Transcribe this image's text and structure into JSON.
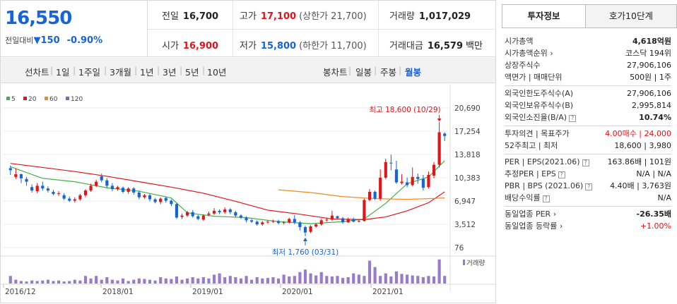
{
  "summary": {
    "price": "16,550",
    "diff_label": "전일대비",
    "diff_arrow": "▼",
    "diff_value": "150",
    "diff_rate": "-0.90%"
  },
  "quote": {
    "prev_label": "전일",
    "prev_value": "16,700",
    "high_label": "고가",
    "high_value": "17,100",
    "upper_limit": "(상한가 21,700)",
    "volume_label": "거래량",
    "volume_value": "1,017,029",
    "open_label": "시가",
    "open_value": "16,900",
    "low_label": "저가",
    "low_value": "15,800",
    "lower_limit": "(하한가 11,700)",
    "amount_label": "거래대금",
    "amount_value": "16,579",
    "amount_unit": "백만"
  },
  "nav": {
    "line_chart": "선차트",
    "periods": [
      "1일",
      "1주일",
      "3개월",
      "1년",
      "3년",
      "5년",
      "10년"
    ],
    "candle_chart": "봉차트",
    "candle_periods": [
      "일봉",
      "주봉",
      "월봉"
    ],
    "active_candle": "월봉"
  },
  "chart_data": {
    "type": "candlestick",
    "legend": [
      {
        "name": "5",
        "color": "#3cb34a"
      },
      {
        "name": "20",
        "color": "#e0151b"
      },
      {
        "name": "60",
        "color": "#f28a1f"
      },
      {
        "name": "120",
        "color": "#8e5ec8"
      }
    ],
    "y_ticks": [
      "20,690",
      "17,254",
      "13,818",
      "10,383",
      "6,947",
      "3,512",
      "76"
    ],
    "ylim": [
      76,
      20690
    ],
    "x_ticks": [
      "2016/12",
      "2018/01",
      "2019/01",
      "2020/01",
      "2021/01"
    ],
    "max_label": "최고 18,600 (10/29)",
    "min_label": "최저 1,760 (03/31)",
    "volume_label": "거래량",
    "candles": [
      [
        11800,
        11500,
        12200,
        10800
      ],
      [
        10500,
        10900,
        11800,
        10200
      ],
      [
        10900,
        10300,
        11000,
        9600
      ],
      [
        10200,
        9800,
        10500,
        9200
      ],
      [
        9000,
        8500,
        9400,
        8200
      ],
      [
        8400,
        9200,
        9600,
        8100
      ],
      [
        9200,
        8800,
        9800,
        8500
      ],
      [
        8800,
        8500,
        9100,
        8200
      ],
      [
        8300,
        8000,
        8600,
        7800
      ],
      [
        8000,
        8100,
        8400,
        7700
      ],
      [
        7800,
        7300,
        8100,
        7100
      ],
      [
        7300,
        7000,
        7600,
        6800
      ],
      [
        7000,
        7200,
        7500,
        6700
      ],
      [
        7200,
        7800,
        8000,
        7000
      ],
      [
        7800,
        8500,
        8700,
        7500
      ],
      [
        8500,
        9200,
        9500,
        8300
      ],
      [
        9200,
        9800,
        10100,
        9000
      ],
      [
        10600,
        10000,
        11000,
        9700
      ],
      [
        10000,
        9200,
        10300,
        8900
      ],
      [
        9200,
        8700,
        9600,
        8400
      ],
      [
        8700,
        9000,
        9200,
        8500
      ],
      [
        8900,
        8300,
        9100,
        8100
      ],
      [
        8300,
        8800,
        9000,
        8000
      ],
      [
        8800,
        8200,
        9000,
        7900
      ],
      [
        8200,
        7500,
        8500,
        7200
      ],
      [
        7500,
        7800,
        8000,
        7300
      ],
      [
        7800,
        7200,
        8000,
        6900
      ],
      [
        7200,
        6800,
        7400,
        6600
      ],
      [
        6800,
        7300,
        7500,
        6500
      ],
      [
        7400,
        7000,
        7600,
        6700
      ],
      [
        7000,
        6500,
        7200,
        6200
      ],
      [
        6500,
        4500,
        6700,
        4300
      ],
      [
        4600,
        4800,
        5100,
        4300
      ],
      [
        4800,
        5300,
        5500,
        4600
      ],
      [
        5300,
        4700,
        5600,
        4500
      ],
      [
        4700,
        4300,
        4900,
        4100
      ],
      [
        4200,
        4800,
        5000,
        4000
      ],
      [
        4900,
        5100,
        5400,
        4700
      ],
      [
        5100,
        5500,
        5900,
        4900
      ],
      [
        5500,
        5300,
        5700,
        5000
      ],
      [
        5300,
        5700,
        6000,
        5100
      ],
      [
        5700,
        5300,
        5900,
        5000
      ],
      [
        5300,
        4800,
        5500,
        4500
      ],
      [
        4800,
        4500,
        5000,
        4300
      ],
      [
        4500,
        4100,
        4700,
        3800
      ],
      [
        4100,
        3900,
        4300,
        3700
      ],
      [
        3900,
        3500,
        4100,
        3300
      ],
      [
        3500,
        3800,
        4000,
        3300
      ],
      [
        3800,
        3900,
        4100,
        3600
      ],
      [
        3900,
        4000,
        4200,
        3700
      ],
      [
        4000,
        3700,
        4200,
        3500
      ],
      [
        3700,
        3800,
        4000,
        3500
      ],
      [
        3800,
        4300,
        4500,
        3600
      ],
      [
        4300,
        3800,
        4900,
        3500
      ],
      [
        3800,
        3100,
        4000,
        2600
      ],
      [
        3100,
        2300,
        3300,
        1760
      ],
      [
        2400,
        3200,
        3400,
        2200
      ],
      [
        3200,
        3500,
        3700,
        3000
      ],
      [
        3500,
        4100,
        4300,
        3300
      ],
      [
        4100,
        4200,
        4500,
        3900
      ],
      [
        4200,
        4800,
        5500,
        4000
      ],
      [
        4700,
        4400,
        4800,
        4200
      ],
      [
        4400,
        3800,
        4600,
        3600
      ],
      [
        3800,
        4300,
        4500,
        3700
      ],
      [
        4300,
        3900,
        4500,
        3800
      ],
      [
        3900,
        4000,
        4200,
        3800
      ],
      [
        4000,
        7100,
        7300,
        3900
      ],
      [
        7100,
        8300,
        8700,
        6900
      ],
      [
        8300,
        7300,
        8500,
        7100
      ],
      [
        7300,
        10400,
        11600,
        7000
      ],
      [
        10400,
        12700,
        13200,
        10200
      ],
      [
        12600,
        12500,
        13800,
        11500
      ],
      [
        11600,
        9700,
        12900,
        9500
      ],
      [
        9600,
        9800,
        10900,
        9400
      ],
      [
        9700,
        9300,
        10400,
        9000
      ],
      [
        9300,
        10500,
        11900,
        9100
      ],
      [
        10500,
        10200,
        11000,
        9500
      ],
      [
        10200,
        8900,
        10800,
        8500
      ],
      [
        9000,
        10800,
        11300,
        8800
      ],
      [
        10700,
        12300,
        12700,
        10300
      ],
      [
        12300,
        17100,
        18600,
        11900
      ],
      [
        16900,
        16550,
        17100,
        15800
      ]
    ],
    "volumes": [
      0.3,
      0.15,
      0.1,
      0.08,
      0.12,
      0.1,
      0.12,
      0.15,
      0.1,
      0.12,
      0.08,
      0.1,
      0.15,
      0.12,
      0.3,
      0.2,
      0.3,
      0.15,
      0.25,
      0.15,
      0.12,
      0.2,
      0.1,
      0.15,
      0.2,
      0.18,
      0.15,
      0.12,
      0.25,
      0.2,
      0.18,
      0.28,
      0.15,
      0.2,
      0.25,
      0.2,
      0.25,
      0.2,
      0.35,
      0.4,
      0.25,
      0.3,
      0.25,
      0.2,
      0.3,
      0.15,
      0.25,
      0.2,
      0.22,
      0.25,
      0.2,
      0.35,
      0.28,
      0.3,
      0.45,
      0.55,
      0.4,
      0.32,
      0.45,
      0.3,
      0.28,
      0.3,
      0.22,
      0.25,
      0.4,
      0.35,
      0.3,
      0.9,
      0.65,
      0.3,
      0.4,
      0.28,
      0.48,
      0.38,
      0.35,
      0.32,
      0.3,
      0.25,
      0.3,
      0.28,
      0.95,
      0.3
    ],
    "ma5": [
      [
        0,
        12000
      ],
      [
        6,
        10300
      ],
      [
        12,
        9800
      ],
      [
        18,
        8900
      ],
      [
        24,
        8400
      ],
      [
        30,
        7400
      ],
      [
        33,
        5200
      ],
      [
        38,
        4700
      ],
      [
        44,
        4500
      ],
      [
        50,
        3900
      ],
      [
        56,
        3600
      ],
      [
        62,
        3900
      ],
      [
        66,
        4300
      ],
      [
        70,
        6600
      ],
      [
        74,
        9500
      ],
      [
        78,
        10500
      ],
      [
        81,
        12900
      ]
    ],
    "ma20": [
      [
        0,
        12500
      ],
      [
        6,
        11900
      ],
      [
        12,
        11300
      ],
      [
        18,
        10600
      ],
      [
        24,
        9800
      ],
      [
        30,
        9000
      ],
      [
        36,
        8100
      ],
      [
        42,
        6900
      ],
      [
        48,
        5600
      ],
      [
        54,
        5000
      ],
      [
        60,
        4300
      ],
      [
        66,
        4200
      ],
      [
        70,
        4600
      ],
      [
        74,
        5500
      ],
      [
        78,
        6700
      ],
      [
        81,
        8300
      ]
    ],
    "ma60": [
      [
        50,
        8600
      ],
      [
        56,
        8200
      ],
      [
        62,
        7600
      ],
      [
        68,
        7300
      ],
      [
        74,
        7200
      ],
      [
        78,
        7300
      ],
      [
        81,
        7400
      ]
    ],
    "ma120": []
  },
  "info": {
    "tab_invest": "투자정보",
    "tab_orderbook": "호가10단계",
    "groups": [
      [
        {
          "k": "시가총액",
          "v": "4,618억원",
          "bold": true
        },
        {
          "k": "시가총액순위 ›",
          "v": "코스닥 194위"
        },
        {
          "k": "상장주식수",
          "v": "27,906,106"
        },
        {
          "k": "액면가 | 매매단위",
          "v": "500원 | 1주"
        }
      ],
      [
        {
          "k": "외국인한도주식수(A)",
          "v": "27,906,106"
        },
        {
          "k": "외국인보유주식수(B)",
          "v": "2,995,814"
        },
        {
          "k": "외국인소진율(B/A)",
          "v": "10.74%",
          "bold": true,
          "help": true
        }
      ],
      [
        {
          "k": "투자의견 | 목표주가",
          "v": "4.00매수 | 24,000",
          "red": true
        },
        {
          "k": "52주최고 | 최저",
          "v": "18,600 | 3,980"
        }
      ],
      [
        {
          "k": "PER | EPS(2021.06)",
          "v": "163.86배 | 101원",
          "help": true
        },
        {
          "k": "추정PER | EPS",
          "v": "N/A | N/A",
          "help": true
        },
        {
          "k": "PBR | BPS (2021.06)",
          "v": "4.40배 | 3,763원",
          "help": true
        },
        {
          "k": "배당수익률",
          "v": "N/A",
          "help": true
        }
      ],
      [
        {
          "k": "동일업종 PER ›",
          "v": "-26.35배",
          "bold": true
        },
        {
          "k": "동일업종 등락률 ›",
          "v": "+1.00%",
          "red": true
        }
      ]
    ]
  }
}
